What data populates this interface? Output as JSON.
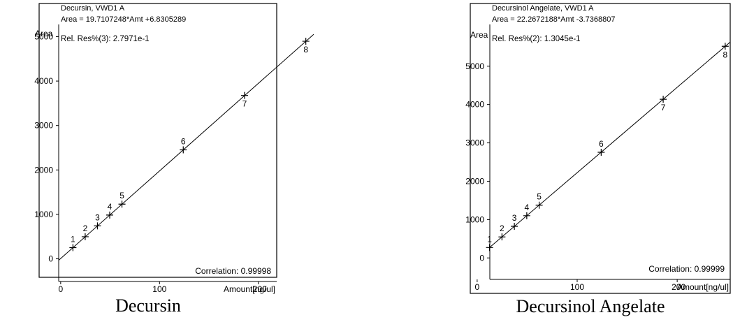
{
  "chart_data": [
    {
      "type": "scatter",
      "compound": "Decursin",
      "title": "Decursin, VWD1 A",
      "equation": "Area = 19.7107248*Amt +6.8305289",
      "rel_res": "Rel. Res%(3): 2.7971e-1",
      "correlation": "Correlation: 0.99998",
      "ylabel": "Area",
      "xlabel": "Amount[ng/ul]",
      "caption": "Decursin",
      "xlim": [
        -2,
        256
      ],
      "ylim": [
        -510,
        5400
      ],
      "x_ticks": [
        0,
        100,
        200
      ],
      "x_tick_labels": [
        "0",
        "100",
        "200"
      ],
      "y_ticks": [
        0,
        1000,
        2000,
        3000,
        4000,
        5000
      ],
      "y_tick_labels": [
        "0",
        "1000",
        "2000",
        "3000",
        "4000",
        "5000"
      ],
      "fit": {
        "slope": 19.7107248,
        "intercept": 6.8305289
      },
      "points": [
        {
          "label": "1",
          "x": 12.4,
          "y": 252
        },
        {
          "label": "2",
          "x": 24.8,
          "y": 497
        },
        {
          "label": "3",
          "x": 37.2,
          "y": 742
        },
        {
          "label": "4",
          "x": 49.6,
          "y": 985
        },
        {
          "label": "5",
          "x": 62.0,
          "y": 1231
        },
        {
          "label": "6",
          "x": 124.0,
          "y": 2452
        },
        {
          "label": "7",
          "x": 186.0,
          "y": 3676
        },
        {
          "label": "8",
          "x": 248.0,
          "y": 4896
        }
      ]
    },
    {
      "type": "scatter",
      "compound": "Decursinol Angelate",
      "title": "Decursinol Angelate, VWD1 A",
      "equation": "Area = 22.2672188*Amt -3.7368807",
      "rel_res": "Rel. Res%(2): 1.3045e-1",
      "correlation": "Correlation: 0.99999",
      "ylabel": "Area",
      "xlabel": "Amount[ng/ul]",
      "caption": "Decursinol Angelate",
      "xlim": [
        -2,
        253
      ],
      "ylim": [
        -560,
        6180
      ],
      "x_ticks": [
        0,
        100,
        200
      ],
      "x_tick_labels": [
        "0",
        "100",
        "200"
      ],
      "y_ticks": [
        0,
        1000,
        2000,
        3000,
        4000,
        5000
      ],
      "y_tick_labels": [
        "0",
        "1000",
        "2000",
        "3000",
        "4000",
        "5000"
      ],
      "fit": {
        "slope": 22.2672188,
        "intercept": -3.7368807
      },
      "points": [
        {
          "label": "1",
          "x": 12.4,
          "y": 272
        },
        {
          "label": "2",
          "x": 24.8,
          "y": 548
        },
        {
          "label": "3",
          "x": 37.2,
          "y": 825
        },
        {
          "label": "4",
          "x": 49.6,
          "y": 1101
        },
        {
          "label": "5",
          "x": 62.0,
          "y": 1376
        },
        {
          "label": "6",
          "x": 124.0,
          "y": 2756
        },
        {
          "label": "7",
          "x": 186.0,
          "y": 4138
        },
        {
          "label": "8",
          "x": 248.0,
          "y": 5519
        }
      ]
    }
  ]
}
